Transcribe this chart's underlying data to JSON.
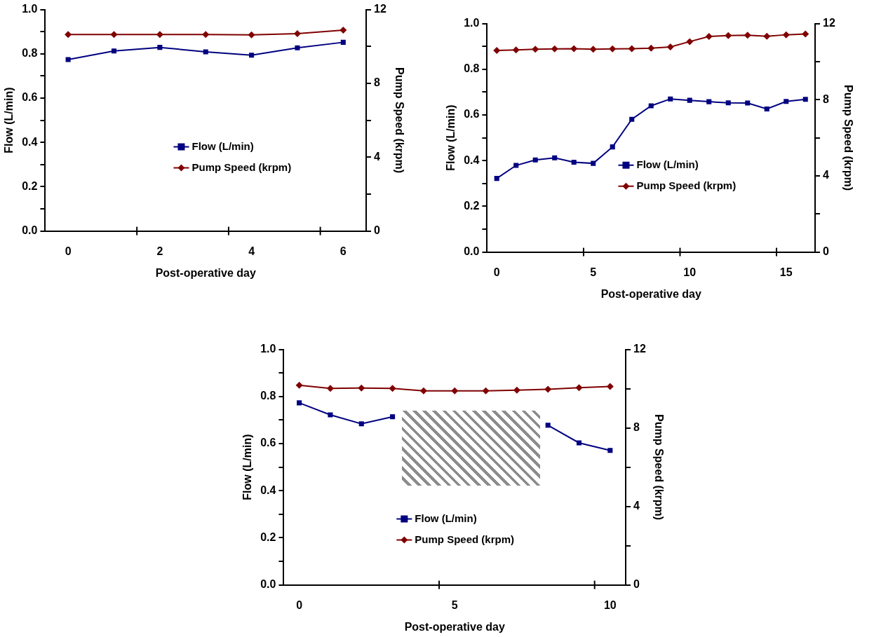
{
  "chart_data": [
    {
      "type": "line",
      "xlabel": "Post-operative day",
      "ylabel": "Flow (L/min)",
      "y2label": "Pump Speed (krpm)",
      "categories": [
        "0",
        null,
        "2",
        null,
        "4",
        null,
        "6"
      ],
      "ylim": [
        0,
        1
      ],
      "yticks": [
        {
          "value": 0,
          "label": "0.0"
        },
        {
          "value": 0.2,
          "label": "0.2"
        },
        {
          "value": 0.4,
          "label": "0.4"
        },
        {
          "value": 0.6,
          "label": "0.6"
        },
        {
          "value": 0.8,
          "label": "0.8"
        },
        {
          "value": 1,
          "label": "1.0"
        }
      ],
      "y2lim": [
        0,
        12
      ],
      "y2ticks": [
        0,
        4,
        8,
        12
      ],
      "legend": "bottom right",
      "series": [
        {
          "name": "Flow (L/min)",
          "color": "#000080",
          "marker": "square",
          "values": [
            0.774,
            0.813,
            0.829,
            0.809,
            0.794,
            0.827,
            0.852
          ]
        },
        {
          "name": "Pump Speed (krpm)",
          "color": "#800000",
          "marker": "diamond",
          "axis": "y2",
          "values": [
            10.65,
            10.65,
            10.65,
            10.65,
            10.63,
            10.69,
            10.88
          ]
        }
      ]
    },
    {
      "type": "line",
      "xlabel": "Post-operative day",
      "ylabel": "Flow (L/min)",
      "y2label": "Pump Speed (krpm)",
      "categories": [
        "0",
        null,
        null,
        null,
        null,
        "5",
        null,
        null,
        null,
        null,
        "10",
        null,
        null,
        null,
        null,
        "15",
        null
      ],
      "ylim": [
        0,
        1
      ],
      "yticks": [
        {
          "value": 0,
          "label": "0.0"
        },
        {
          "value": 0.2,
          "label": "0.2"
        },
        {
          "value": 0.4,
          "label": "0.4"
        },
        {
          "value": 0.6,
          "label": "0.6"
        },
        {
          "value": 0.8,
          "label": "0.8"
        },
        {
          "value": 1,
          "label": "1.0"
        }
      ],
      "y2lim": [
        0,
        12
      ],
      "y2ticks": [
        0,
        4,
        8,
        12
      ],
      "legend": "bottom right",
      "series": [
        {
          "name": "Flow (L/min)",
          "color": "#000080",
          "marker": "square",
          "values": [
            0.322,
            0.379,
            0.403,
            0.412,
            0.393,
            0.388,
            0.46,
            0.581,
            0.64,
            0.67,
            0.664,
            0.658,
            0.653,
            0.652,
            0.626,
            0.659,
            0.668
          ]
        },
        {
          "name": "Pump Speed (krpm)",
          "color": "#800000",
          "marker": "diamond",
          "axis": "y2",
          "values": [
            10.59,
            10.61,
            10.65,
            10.67,
            10.68,
            10.65,
            10.67,
            10.68,
            10.71,
            10.77,
            11.05,
            11.32,
            11.37,
            11.39,
            11.33,
            11.41,
            11.45
          ]
        }
      ]
    },
    {
      "type": "line",
      "xlabel": "Post-operative day",
      "ylabel": "Flow (L/min)",
      "y2label": "Pump Speed (krpm)",
      "categories": [
        "0",
        null,
        null,
        null,
        null,
        "5",
        null,
        null,
        null,
        null,
        "10"
      ],
      "ylim": [
        0,
        1
      ],
      "yticks": [
        {
          "value": 0,
          "label": "0.0"
        },
        {
          "value": 0.2,
          "label": "0.2"
        },
        {
          "value": 0.4,
          "label": "0.4"
        },
        {
          "value": 0.6,
          "label": "0.6"
        },
        {
          "value": 0.8,
          "label": "0.8"
        },
        {
          "value": 1,
          "label": "1.0"
        }
      ],
      "y2lim": [
        0,
        12
      ],
      "y2ticks": [
        0,
        4,
        8,
        12
      ],
      "legend": "bottom",
      "series": [
        {
          "name": "Flow (L/min)",
          "color": "#000080",
          "marker": "square",
          "values": [
            0.773,
            0.722,
            0.684,
            0.714,
            null,
            null,
            null,
            null,
            0.678,
            0.603,
            0.571
          ]
        },
        {
          "name": "Pump Speed (krpm)",
          "color": "#800000",
          "marker": "diamond",
          "axis": "y2",
          "values": [
            10.17,
            10.01,
            10.03,
            10.01,
            9.89,
            9.89,
            9.89,
            9.92,
            9.97,
            10.05,
            10.11
          ]
        }
      ]
    }
  ]
}
